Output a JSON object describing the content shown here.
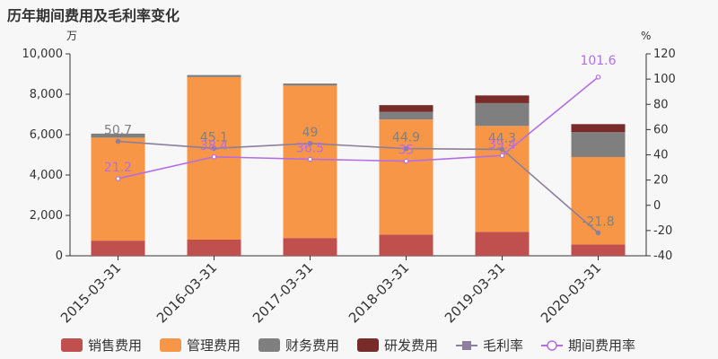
{
  "title": "历年期间费用及毛利率变化",
  "chart_data": {
    "type": "bar",
    "stacked": true,
    "categories": [
      "2015-03-31",
      "2016-03-31",
      "2017-03-31",
      "2018-03-31",
      "2019-03-31",
      "2020-03-31"
    ],
    "left_axis": {
      "unit": "万",
      "ylim": [
        0,
        10000
      ],
      "ticks": [
        "0",
        "2,000",
        "4,000",
        "6,000",
        "8,000",
        "10,000"
      ]
    },
    "right_axis": {
      "unit": "%",
      "ylim": [
        -40,
        120
      ],
      "ticks": [
        "-40",
        "-20",
        "0",
        "20",
        "40",
        "60",
        "80",
        "100",
        "120"
      ]
    },
    "series": [
      {
        "name": "销售费用",
        "type": "bar",
        "color": "#c0504d",
        "values": [
          750,
          800,
          880,
          1050,
          1180,
          560
        ]
      },
      {
        "name": "管理费用",
        "type": "bar",
        "color": "#f79646",
        "values": [
          5100,
          8050,
          7550,
          5700,
          5250,
          4330
        ]
      },
      {
        "name": "财务费用",
        "type": "bar",
        "color": "#7f7f7f",
        "values": [
          200,
          100,
          100,
          380,
          1130,
          1230
        ]
      },
      {
        "name": "研发费用",
        "type": "bar",
        "color": "#772c2a",
        "values": [
          0,
          0,
          0,
          330,
          380,
          400
        ]
      },
      {
        "name": "毛利率",
        "type": "line",
        "axis": "right",
        "color": "#8c7f9b",
        "values": [
          50.7,
          45.1,
          49,
          44.9,
          44.3,
          -21.8
        ],
        "labels": [
          "50.7",
          "45.1",
          "49",
          "44.9",
          "44.3",
          "-21.8"
        ]
      },
      {
        "name": "期间费用率",
        "type": "line",
        "axis": "right",
        "color": "#b36ee5",
        "values": [
          21.2,
          38.4,
          36.5,
          35,
          39.4,
          101.6
        ],
        "labels": [
          "21.2",
          "38.4",
          "36.5",
          "35",
          "39.4",
          "101.6"
        ]
      }
    ],
    "grid": false,
    "legend_position": "bottom"
  }
}
